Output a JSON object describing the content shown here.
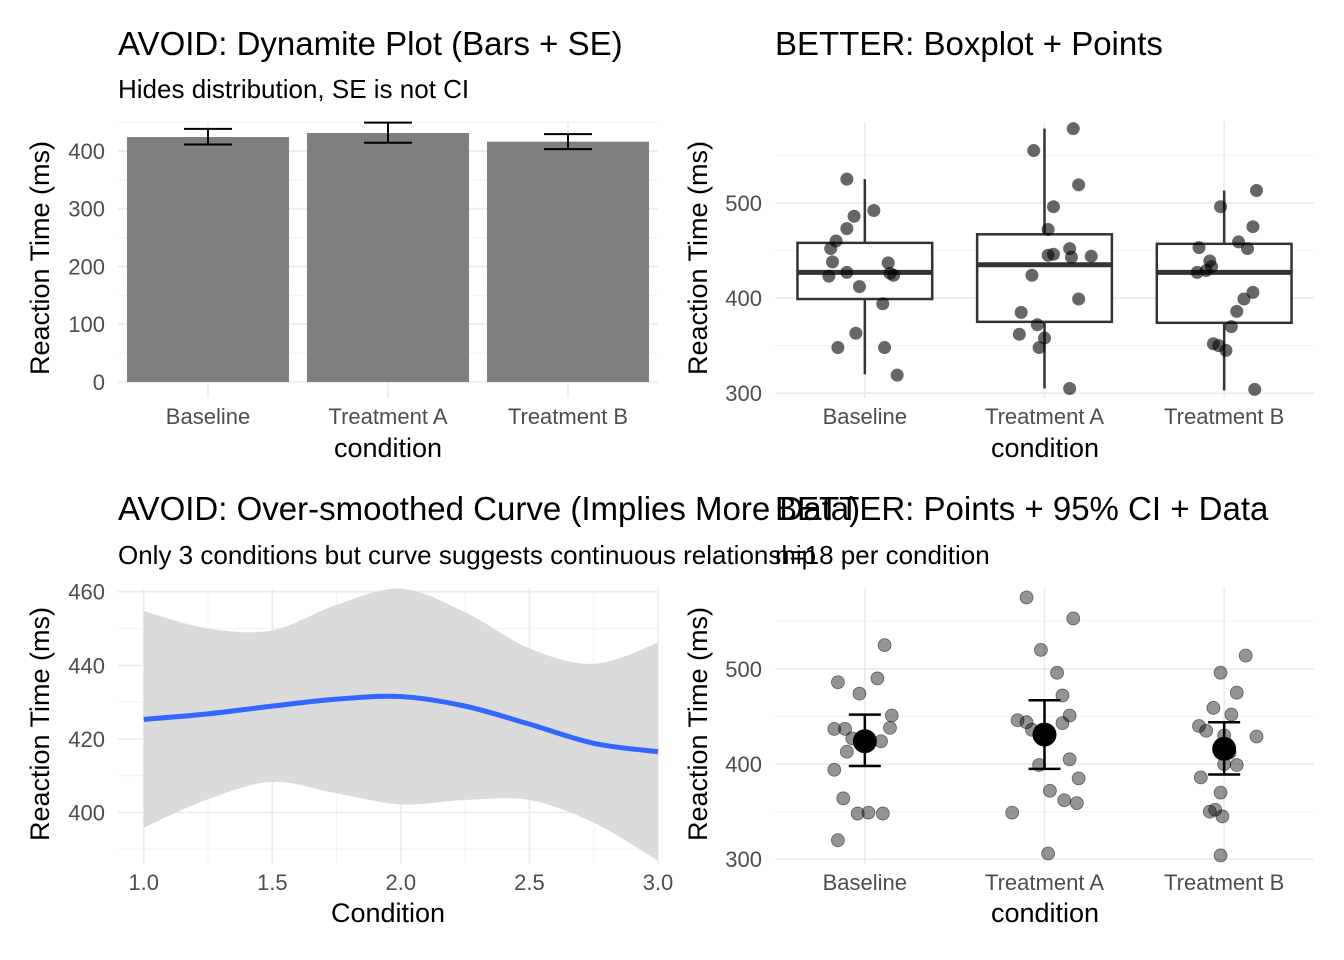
{
  "chart_data": [
    {
      "type": "bar",
      "title": "AVOID: Dynamite Plot (Bars + SE)",
      "subtitle": "Hides distribution, SE is not CI",
      "xlabel": "condition",
      "ylabel": "Reaction Time (ms)",
      "categories": [
        "Baseline",
        "Treatment A",
        "Treatment B"
      ],
      "values": [
        424,
        431,
        416
      ],
      "error_low": [
        411,
        414,
        403
      ],
      "error_high": [
        438,
        449,
        429
      ],
      "yticks": [
        0,
        100,
        200,
        300,
        400
      ],
      "ylim": [
        0,
        450
      ],
      "bar_color": "#7f7f7f",
      "grid": true
    },
    {
      "type": "box",
      "title": "BETTER: Boxplot + Points",
      "xlabel": "condition",
      "ylabel": "Reaction Time (ms)",
      "categories": [
        "Baseline",
        "Treatment A",
        "Treatment B"
      ],
      "boxes": [
        {
          "lower_whisker": 320,
          "q1": 399,
          "median": 427,
          "q3": 458,
          "upper_whisker": 525
        },
        {
          "lower_whisker": 305,
          "q1": 375,
          "median": 435,
          "q3": 467,
          "upper_whisker": 578
        },
        {
          "lower_whisker": 303,
          "q1": 374,
          "median": 427,
          "q3": 457,
          "upper_whisker": 513
        }
      ],
      "points": [
        [
          {
            "x": 0.9,
            "y": 525
          },
          {
            "x": 0.9,
            "y": 473
          },
          {
            "x": 1.05,
            "y": 492
          },
          {
            "x": 0.94,
            "y": 486
          },
          {
            "x": 0.84,
            "y": 460
          },
          {
            "x": 0.81,
            "y": 452
          },
          {
            "x": 0.82,
            "y": 438
          },
          {
            "x": 0.9,
            "y": 427
          },
          {
            "x": 1.13,
            "y": 437
          },
          {
            "x": 1.14,
            "y": 426
          },
          {
            "x": 1.16,
            "y": 424
          },
          {
            "x": 0.8,
            "y": 423
          },
          {
            "x": 0.97,
            "y": 412
          },
          {
            "x": 1.1,
            "y": 394
          },
          {
            "x": 0.95,
            "y": 363
          },
          {
            "x": 0.85,
            "y": 348
          },
          {
            "x": 1.11,
            "y": 348
          },
          {
            "x": 1.18,
            "y": 319
          }
        ],
        [
          {
            "x": 2.16,
            "y": 578
          },
          {
            "x": 1.94,
            "y": 555
          },
          {
            "x": 2.19,
            "y": 519
          },
          {
            "x": 2.05,
            "y": 496
          },
          {
            "x": 2.02,
            "y": 472
          },
          {
            "x": 2.14,
            "y": 452
          },
          {
            "x": 2.05,
            "y": 446
          },
          {
            "x": 2.02,
            "y": 445
          },
          {
            "x": 2.15,
            "y": 443
          },
          {
            "x": 2.26,
            "y": 444
          },
          {
            "x": 1.93,
            "y": 424
          },
          {
            "x": 2.19,
            "y": 399
          },
          {
            "x": 1.87,
            "y": 385
          },
          {
            "x": 1.96,
            "y": 372
          },
          {
            "x": 1.86,
            "y": 362
          },
          {
            "x": 2.0,
            "y": 358
          },
          {
            "x": 1.97,
            "y": 348
          },
          {
            "x": 2.14,
            "y": 305
          }
        ],
        [
          {
            "x": 3.18,
            "y": 513
          },
          {
            "x": 2.98,
            "y": 496
          },
          {
            "x": 3.16,
            "y": 475
          },
          {
            "x": 3.08,
            "y": 459
          },
          {
            "x": 3.13,
            "y": 452
          },
          {
            "x": 2.86,
            "y": 453
          },
          {
            "x": 2.92,
            "y": 439
          },
          {
            "x": 2.93,
            "y": 433
          },
          {
            "x": 2.85,
            "y": 427
          },
          {
            "x": 2.9,
            "y": 429
          },
          {
            "x": 3.16,
            "y": 406
          },
          {
            "x": 3.11,
            "y": 399
          },
          {
            "x": 3.07,
            "y": 386
          },
          {
            "x": 3.04,
            "y": 370
          },
          {
            "x": 2.94,
            "y": 352
          },
          {
            "x": 2.97,
            "y": 350
          },
          {
            "x": 3.01,
            "y": 345
          },
          {
            "x": 3.17,
            "y": 304
          }
        ]
      ],
      "yticks": [
        300,
        400,
        500
      ],
      "ylim": [
        295,
        585
      ],
      "grid": true
    },
    {
      "type": "line",
      "title": "AVOID: Over-smoothed Curve (Implies More Data)",
      "subtitle": "Only 3 conditions but curve suggests continuous relationship",
      "xlabel": "Condition",
      "ylabel": "Reaction Time (ms)",
      "x": [
        1.0,
        1.25,
        1.5,
        1.75,
        2.0,
        2.25,
        2.5,
        2.75,
        3.0
      ],
      "y": [
        425.3,
        426.8,
        428.9,
        430.8,
        431.5,
        428.9,
        424.0,
        418.8,
        416.5
      ],
      "ci_low": [
        395.9,
        403.6,
        408.3,
        405.2,
        402.2,
        403.4,
        403.4,
        397.2,
        386.9
      ],
      "ci_high": [
        454.7,
        450.0,
        449.5,
        456.4,
        460.8,
        454.4,
        444.6,
        440.4,
        446.1
      ],
      "xticks": [
        1.0,
        1.5,
        2.0,
        2.5,
        3.0
      ],
      "xtick_labels": [
        "1.0",
        "1.5",
        "2.0",
        "2.5",
        "3.0"
      ],
      "yticks": [
        400,
        420,
        440,
        460
      ],
      "xlim": [
        0.9,
        3.0
      ],
      "ylim": [
        386,
        461
      ],
      "line_color": "#3366ff",
      "band_color": "#d9d9d9",
      "grid": true
    },
    {
      "type": "scatter",
      "title": "BETTER: Points + 95% CI + Data",
      "subtitle": "n=18 per condition",
      "xlabel": "condition",
      "ylabel": "Reaction Time (ms)",
      "categories": [
        "Baseline",
        "Treatment A",
        "Treatment B"
      ],
      "means": [
        424,
        431,
        416
      ],
      "ci_low": [
        398,
        395,
        389
      ],
      "ci_high": [
        452,
        467,
        444
      ],
      "points": [
        [
          {
            "x": 1.11,
            "y": 525
          },
          {
            "x": 0.97,
            "y": 474
          },
          {
            "x": 1.15,
            "y": 451
          },
          {
            "x": 1.14,
            "y": 438
          },
          {
            "x": 1.09,
            "y": 424
          },
          {
            "x": 0.89,
            "y": 437
          },
          {
            "x": 0.9,
            "y": 413
          },
          {
            "x": 0.85,
            "y": 486
          },
          {
            "x": 1.07,
            "y": 490
          },
          {
            "x": 0.83,
            "y": 437
          },
          {
            "x": 0.93,
            "y": 427
          },
          {
            "x": 0.96,
            "y": 348
          },
          {
            "x": 0.83,
            "y": 394
          },
          {
            "x": 1.0,
            "y": 420
          },
          {
            "x": 0.88,
            "y": 364
          },
          {
            "x": 1.02,
            "y": 349
          },
          {
            "x": 1.1,
            "y": 348
          },
          {
            "x": 0.85,
            "y": 320
          }
        ],
        [
          {
            "x": 1.9,
            "y": 575
          },
          {
            "x": 2.16,
            "y": 553
          },
          {
            "x": 1.98,
            "y": 520
          },
          {
            "x": 2.07,
            "y": 496
          },
          {
            "x": 2.1,
            "y": 472
          },
          {
            "x": 2.14,
            "y": 451
          },
          {
            "x": 1.85,
            "y": 446
          },
          {
            "x": 2.1,
            "y": 443
          },
          {
            "x": 1.93,
            "y": 436
          },
          {
            "x": 1.97,
            "y": 399
          },
          {
            "x": 2.14,
            "y": 405
          },
          {
            "x": 2.19,
            "y": 385
          },
          {
            "x": 2.03,
            "y": 372
          },
          {
            "x": 2.11,
            "y": 362
          },
          {
            "x": 2.18,
            "y": 359
          },
          {
            "x": 1.82,
            "y": 349
          },
          {
            "x": 2.02,
            "y": 306
          },
          {
            "x": 1.9,
            "y": 444
          }
        ],
        [
          {
            "x": 3.12,
            "y": 514
          },
          {
            "x": 2.98,
            "y": 496
          },
          {
            "x": 3.07,
            "y": 475
          },
          {
            "x": 2.94,
            "y": 459
          },
          {
            "x": 3.04,
            "y": 452
          },
          {
            "x": 2.86,
            "y": 440
          },
          {
            "x": 3.0,
            "y": 430
          },
          {
            "x": 3.18,
            "y": 429
          },
          {
            "x": 2.9,
            "y": 435
          },
          {
            "x": 3.0,
            "y": 400
          },
          {
            "x": 3.07,
            "y": 399
          },
          {
            "x": 2.87,
            "y": 386
          },
          {
            "x": 2.98,
            "y": 370
          },
          {
            "x": 2.95,
            "y": 352
          },
          {
            "x": 2.92,
            "y": 350
          },
          {
            "x": 2.99,
            "y": 345
          },
          {
            "x": 2.98,
            "y": 304
          },
          {
            "x": 3.03,
            "y": 412
          }
        ]
      ],
      "yticks": [
        300,
        400,
        500
      ],
      "ylim": [
        295,
        585
      ],
      "grid": true
    }
  ]
}
